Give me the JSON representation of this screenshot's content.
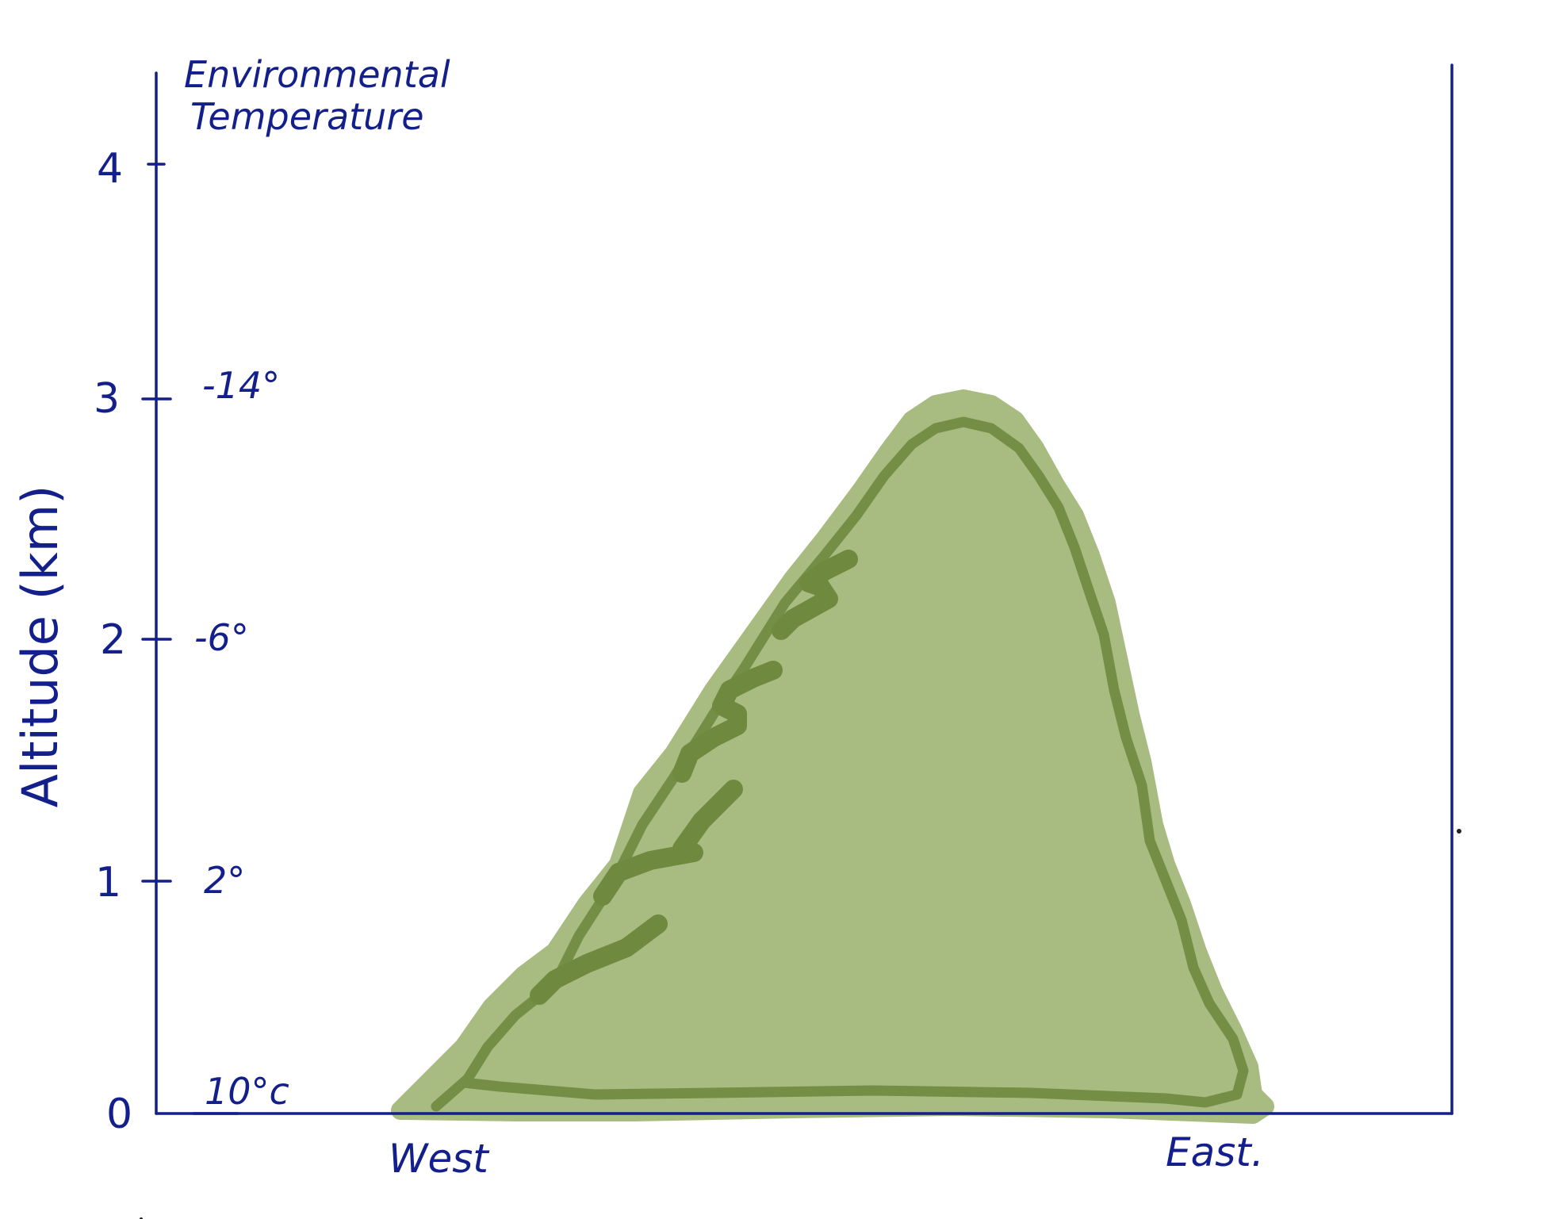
{
  "diagram": {
    "y_axis_title": "Altitude (km)",
    "temperature_heading_line1": "Environmental",
    "temperature_heading_line2": "Temperature",
    "y_ticks": [
      {
        "value": "0",
        "temperature": "10°c"
      },
      {
        "value": "1",
        "temperature": "2°"
      },
      {
        "value": "2",
        "temperature": "-6°"
      },
      {
        "value": "3",
        "temperature": "-14°"
      },
      {
        "value": "4",
        "temperature": ""
      }
    ],
    "x_labels": {
      "west": "West",
      "east": "East."
    },
    "colors": {
      "ink": "#131f8a",
      "mountain_fill": "#a8bb80",
      "mountain_outline": "#6f8a3e"
    }
  }
}
